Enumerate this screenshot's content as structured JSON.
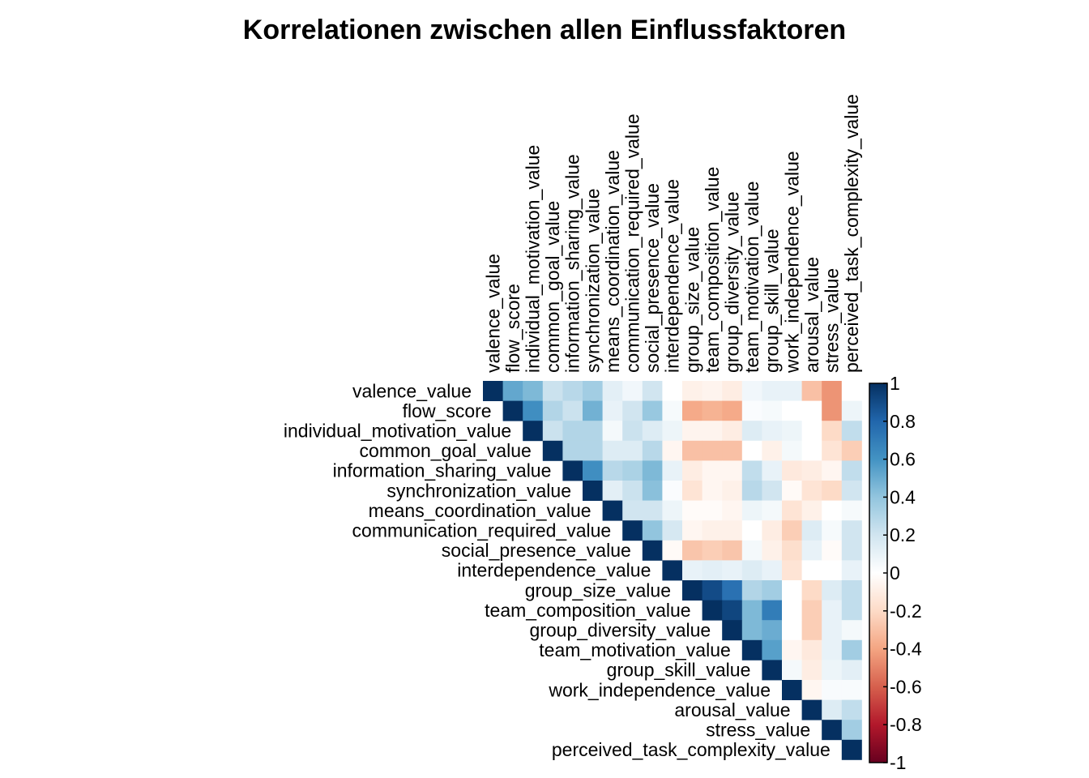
{
  "chart_data": {
    "type": "heatmap",
    "subtype": "correlation-matrix-upper-triangle",
    "title": "Korrelationen zwischen allen Einflussfaktoren",
    "variables": [
      "valence_value",
      "flow_score",
      "individual_motivation_value",
      "common_goal_value",
      "information_sharing_value",
      "synchronization_value",
      "means_coordination_value",
      "communication_required_value",
      "social_presence_value",
      "interdependence_value",
      "group_size_value",
      "team_composition_value",
      "group_diversity_value",
      "team_motivation_value",
      "group_skill_value",
      "work_independence_value",
      "arousal_value",
      "stress_value",
      "perceived_task_complexity_value"
    ],
    "matrix": [
      [
        1,
        0.52,
        0.45,
        0.22,
        0.28,
        0.35,
        0.12,
        0.06,
        0.2,
        0.0,
        -0.08,
        -0.06,
        -0.1,
        0.06,
        0.1,
        0.1,
        -0.3,
        -0.45,
        0.0
      ],
      [
        0.52,
        1,
        0.62,
        0.3,
        0.22,
        0.48,
        0.1,
        0.2,
        0.38,
        0.04,
        -0.38,
        -0.35,
        -0.38,
        0.02,
        0.04,
        0.0,
        0.0,
        -0.45,
        0.08
      ],
      [
        0.45,
        0.62,
        1,
        0.22,
        0.3,
        0.3,
        0.05,
        0.22,
        0.15,
        0.08,
        -0.06,
        -0.06,
        -0.1,
        0.15,
        0.1,
        0.08,
        0.0,
        -0.2,
        0.25
      ],
      [
        0.22,
        0.3,
        0.22,
        1,
        0.3,
        0.3,
        0.15,
        0.15,
        0.28,
        -0.05,
        -0.3,
        -0.3,
        -0.3,
        0.0,
        -0.08,
        0.05,
        0.0,
        -0.15,
        -0.25
      ],
      [
        0.28,
        0.22,
        0.3,
        0.3,
        1,
        0.62,
        0.28,
        0.32,
        0.45,
        0.1,
        -0.1,
        -0.05,
        -0.05,
        0.25,
        0.1,
        -0.12,
        -0.1,
        -0.05,
        0.25
      ],
      [
        0.35,
        0.48,
        0.3,
        0.3,
        0.62,
        1,
        0.12,
        0.22,
        0.42,
        0.02,
        -0.15,
        -0.05,
        -0.08,
        0.28,
        0.2,
        -0.03,
        -0.15,
        -0.2,
        0.2
      ],
      [
        0.12,
        0.1,
        0.05,
        0.15,
        0.28,
        0.12,
        1,
        0.2,
        0.2,
        0.08,
        -0.02,
        -0.02,
        -0.05,
        0.08,
        0.05,
        -0.15,
        -0.08,
        0.0,
        0.04
      ],
      [
        0.06,
        0.2,
        0.22,
        0.15,
        0.32,
        0.22,
        0.2,
        1,
        0.4,
        0.18,
        -0.05,
        -0.08,
        -0.08,
        0.0,
        -0.1,
        -0.25,
        0.15,
        0.04,
        0.2
      ],
      [
        0.2,
        0.38,
        0.15,
        0.28,
        0.45,
        0.42,
        0.2,
        0.4,
        1,
        -0.03,
        -0.28,
        -0.25,
        -0.28,
        0.05,
        -0.08,
        -0.18,
        0.1,
        -0.02,
        0.2
      ],
      [
        0.0,
        0.04,
        0.08,
        -0.05,
        0.1,
        0.02,
        0.08,
        0.18,
        -0.03,
        1,
        0.1,
        0.12,
        0.1,
        0.15,
        0.1,
        -0.15,
        0.0,
        0.0,
        0.1
      ],
      [
        -0.08,
        -0.38,
        -0.06,
        -0.3,
        -0.1,
        -0.15,
        -0.02,
        -0.05,
        -0.28,
        0.1,
        1,
        0.9,
        0.75,
        0.3,
        0.35,
        0.0,
        -0.2,
        0.15,
        0.25
      ],
      [
        -0.06,
        -0.35,
        -0.06,
        -0.3,
        -0.05,
        -0.05,
        -0.02,
        -0.08,
        -0.25,
        0.12,
        0.9,
        1,
        0.92,
        0.45,
        0.7,
        0.0,
        -0.25,
        0.1,
        0.25
      ],
      [
        -0.1,
        -0.38,
        -0.1,
        -0.3,
        -0.05,
        -0.08,
        -0.05,
        -0.08,
        -0.28,
        0.1,
        0.75,
        0.92,
        1,
        0.45,
        0.5,
        0.0,
        -0.25,
        0.1,
        0.05
      ],
      [
        0.06,
        0.02,
        0.15,
        0.0,
        0.25,
        0.28,
        0.08,
        0.0,
        0.05,
        0.15,
        0.3,
        0.45,
        0.45,
        1,
        0.55,
        -0.05,
        -0.12,
        0.1,
        0.35
      ],
      [
        0.1,
        0.04,
        0.1,
        -0.08,
        0.1,
        0.2,
        0.05,
        -0.1,
        -0.08,
        0.1,
        0.35,
        0.7,
        0.5,
        0.55,
        1,
        0.05,
        -0.1,
        0.08,
        0.12
      ],
      [
        0.1,
        0.0,
        0.08,
        0.05,
        -0.12,
        -0.03,
        -0.15,
        -0.25,
        -0.18,
        -0.15,
        0.0,
        0.0,
        0.0,
        -0.05,
        0.05,
        1,
        -0.05,
        0.03,
        0.03
      ],
      [
        -0.3,
        0.0,
        0.0,
        0.0,
        -0.1,
        -0.15,
        -0.08,
        0.15,
        0.1,
        0.0,
        -0.2,
        -0.25,
        -0.25,
        -0.12,
        -0.1,
        -0.05,
        1,
        0.15,
        0.25
      ],
      [
        -0.45,
        -0.45,
        -0.2,
        -0.15,
        -0.05,
        -0.2,
        0.0,
        0.04,
        -0.02,
        0.0,
        0.15,
        0.1,
        0.1,
        0.1,
        0.08,
        0.03,
        0.15,
        1,
        0.35
      ],
      [
        0.0,
        0.08,
        0.25,
        -0.25,
        0.25,
        0.2,
        0.04,
        0.2,
        0.2,
        0.1,
        0.25,
        0.25,
        0.05,
        0.35,
        0.12,
        0.03,
        0.25,
        0.35,
        1
      ]
    ],
    "colorbar": {
      "range": [
        -1,
        1
      ],
      "tick_labels": [
        "1",
        "0.8",
        "0.6",
        "0.4",
        "0.2",
        "0",
        "-0.2",
        "-0.4",
        "-0.6",
        "-0.8",
        "-1"
      ],
      "palette": [
        "#67001F",
        "#B2182B",
        "#D6604D",
        "#F4A582",
        "#FDDBC7",
        "#FFFFFF",
        "#D1E5F0",
        "#92C5DE",
        "#4393C3",
        "#2166AC",
        "#053061"
      ]
    },
    "legend_placement": "right",
    "grid": false
  }
}
